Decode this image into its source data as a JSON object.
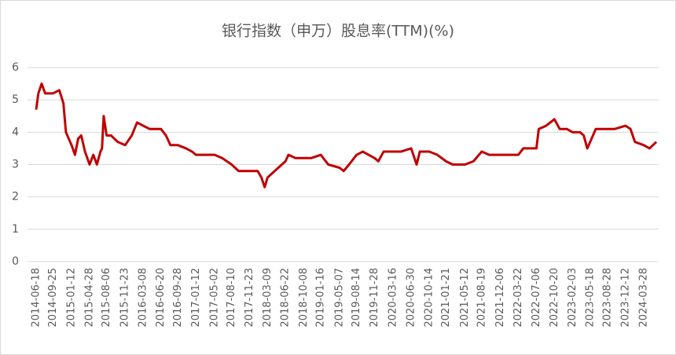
{
  "chart_data": {
    "type": "line",
    "title": "银行指数（申万）股息率(TTM)(%)",
    "x": [
      "2014-06-18",
      "2014-07-01",
      "2014-07-20",
      "2014-08-10",
      "2014-09-25",
      "2014-11-01",
      "2014-11-25",
      "2014-12-10",
      "2015-01-12",
      "2015-02-01",
      "2015-02-20",
      "2015-03-10",
      "2015-04-01",
      "2015-04-28",
      "2015-05-20",
      "2015-06-10",
      "2015-07-01",
      "2015-07-10",
      "2015-07-20",
      "2015-08-06",
      "2015-09-01",
      "2015-10-10",
      "2015-11-23",
      "2016-01-01",
      "2016-02-01",
      "2016-03-08",
      "2016-04-15",
      "2016-06-20",
      "2016-07-20",
      "2016-08-15",
      "2016-09-28",
      "2016-11-15",
      "2016-12-20",
      "2017-01-12",
      "2017-03-01",
      "2017-05-02",
      "2017-06-15",
      "2017-08-10",
      "2017-09-20",
      "2017-11-23",
      "2018-01-10",
      "2018-02-01",
      "2018-02-20",
      "2018-03-09",
      "2018-04-20",
      "2018-06-22",
      "2018-07-10",
      "2018-08-20",
      "2018-10-08",
      "2018-11-20",
      "2019-01-16",
      "2019-03-01",
      "2019-05-07",
      "2019-05-30",
      "2019-07-01",
      "2019-08-14",
      "2019-09-20",
      "2019-11-28",
      "2019-12-20",
      "2020-01-20",
      "2020-03-16",
      "2020-05-01",
      "2020-06-30",
      "2020-08-01",
      "2020-08-20",
      "2020-10-14",
      "2020-12-01",
      "2021-01-21",
      "2021-03-01",
      "2021-05-12",
      "2021-07-01",
      "2021-08-19",
      "2021-10-01",
      "2021-12-06",
      "2022-02-01",
      "2022-03-22",
      "2022-04-20",
      "2022-07-06",
      "2022-07-20",
      "2022-09-01",
      "2022-10-20",
      "2022-11-20",
      "2023-01-01",
      "2023-02-03",
      "2023-03-20",
      "2023-04-10",
      "2023-05-01",
      "2023-05-18",
      "2023-06-20",
      "2023-08-28",
      "2023-10-10",
      "2023-12-12",
      "2024-01-10",
      "2024-02-05",
      "2024-03-28",
      "2024-05-01",
      "2024-06-10"
    ],
    "series": [
      {
        "name": "股息率",
        "color": "#c00000",
        "values": [
          4.7,
          5.2,
          5.5,
          5.2,
          5.2,
          5.3,
          4.9,
          4.0,
          3.6,
          3.3,
          3.8,
          3.9,
          3.4,
          3.0,
          3.3,
          3.0,
          3.4,
          3.5,
          4.5,
          3.9,
          3.9,
          3.7,
          3.6,
          3.9,
          4.3,
          4.2,
          4.1,
          4.1,
          3.9,
          3.6,
          3.6,
          3.5,
          3.4,
          3.3,
          3.3,
          3.3,
          3.2,
          3.0,
          2.8,
          2.8,
          2.8,
          2.6,
          2.3,
          2.6,
          2.8,
          3.1,
          3.3,
          3.2,
          3.2,
          3.2,
          3.3,
          3.0,
          2.9,
          2.8,
          3.0,
          3.3,
          3.4,
          3.2,
          3.1,
          3.4,
          3.4,
          3.4,
          3.5,
          3.0,
          3.4,
          3.4,
          3.3,
          3.1,
          3.0,
          3.0,
          3.1,
          3.4,
          3.3,
          3.3,
          3.3,
          3.3,
          3.5,
          3.5,
          4.1,
          4.2,
          4.4,
          4.1,
          4.1,
          4.0,
          4.0,
          3.9,
          3.5,
          3.7,
          4.1,
          4.1,
          4.1,
          4.2,
          4.1,
          3.7,
          3.6,
          3.5,
          3.7
        ]
      }
    ],
    "xticks": [
      "2014-06-18",
      "2014-09-25",
      "2015-01-12",
      "2015-04-28",
      "2015-08-06",
      "2015-11-23",
      "2016-03-08",
      "2016-06-20",
      "2016-09-28",
      "2017-01-12",
      "2017-05-02",
      "2017-08-10",
      "2017-11-23",
      "2018-03-09",
      "2018-06-22",
      "2018-10-08",
      "2019-01-16",
      "2019-05-07",
      "2019-08-14",
      "2019-11-28",
      "2020-03-16",
      "2020-06-30",
      "2020-10-14",
      "2021-01-21",
      "2021-05-12",
      "2021-08-19",
      "2021-12-06",
      "2022-03-22",
      "2022-07-06",
      "2022-10-20",
      "2023-02-03",
      "2023-05-18",
      "2023-08-28",
      "2023-12-12",
      "2024-03-28"
    ],
    "ylim": [
      0,
      6
    ],
    "yticks": [
      0,
      1,
      2,
      3,
      4,
      5,
      6
    ],
    "grid": true
  }
}
